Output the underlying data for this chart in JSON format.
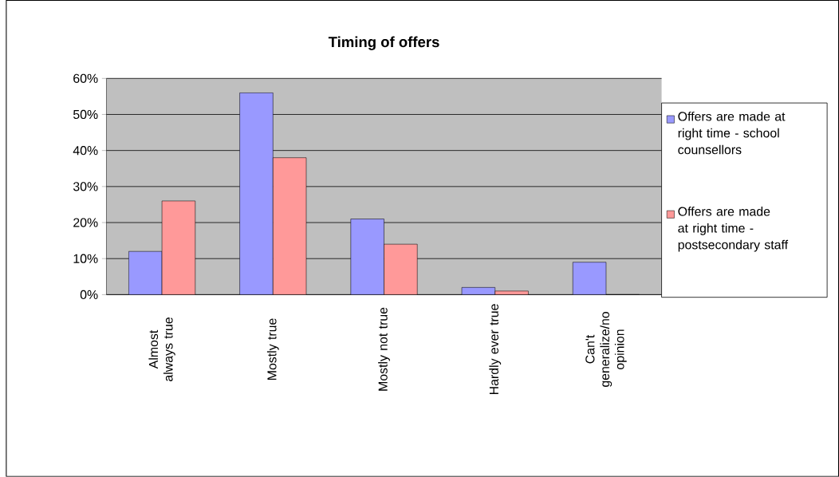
{
  "chart_data": {
    "type": "bar",
    "title": "Timing of offers",
    "categories": [
      "Almost always true",
      "Mostly true",
      "Mostly not true",
      "Hardly ever true",
      "Can't generalize/no opinion"
    ],
    "series": [
      {
        "name": "Offers are made at right time - school counsellors",
        "color": "#9999ff",
        "values": [
          12,
          56,
          21,
          2,
          9
        ]
      },
      {
        "name": "Offers are made at right time - postsecondary staff",
        "color": "#ff9999",
        "values": [
          26,
          38,
          14,
          1,
          0
        ]
      }
    ],
    "ylim": [
      0,
      60
    ],
    "yticks": [
      {
        "value": 0,
        "label": "0%"
      },
      {
        "value": 10,
        "label": "10%"
      },
      {
        "value": 20,
        "label": "20%"
      },
      {
        "value": 30,
        "label": "30%"
      },
      {
        "value": 40,
        "label": "40%"
      },
      {
        "value": 50,
        "label": "50%"
      },
      {
        "value": 60,
        "label": "60%"
      }
    ],
    "grid": "y",
    "legend": "right"
  }
}
